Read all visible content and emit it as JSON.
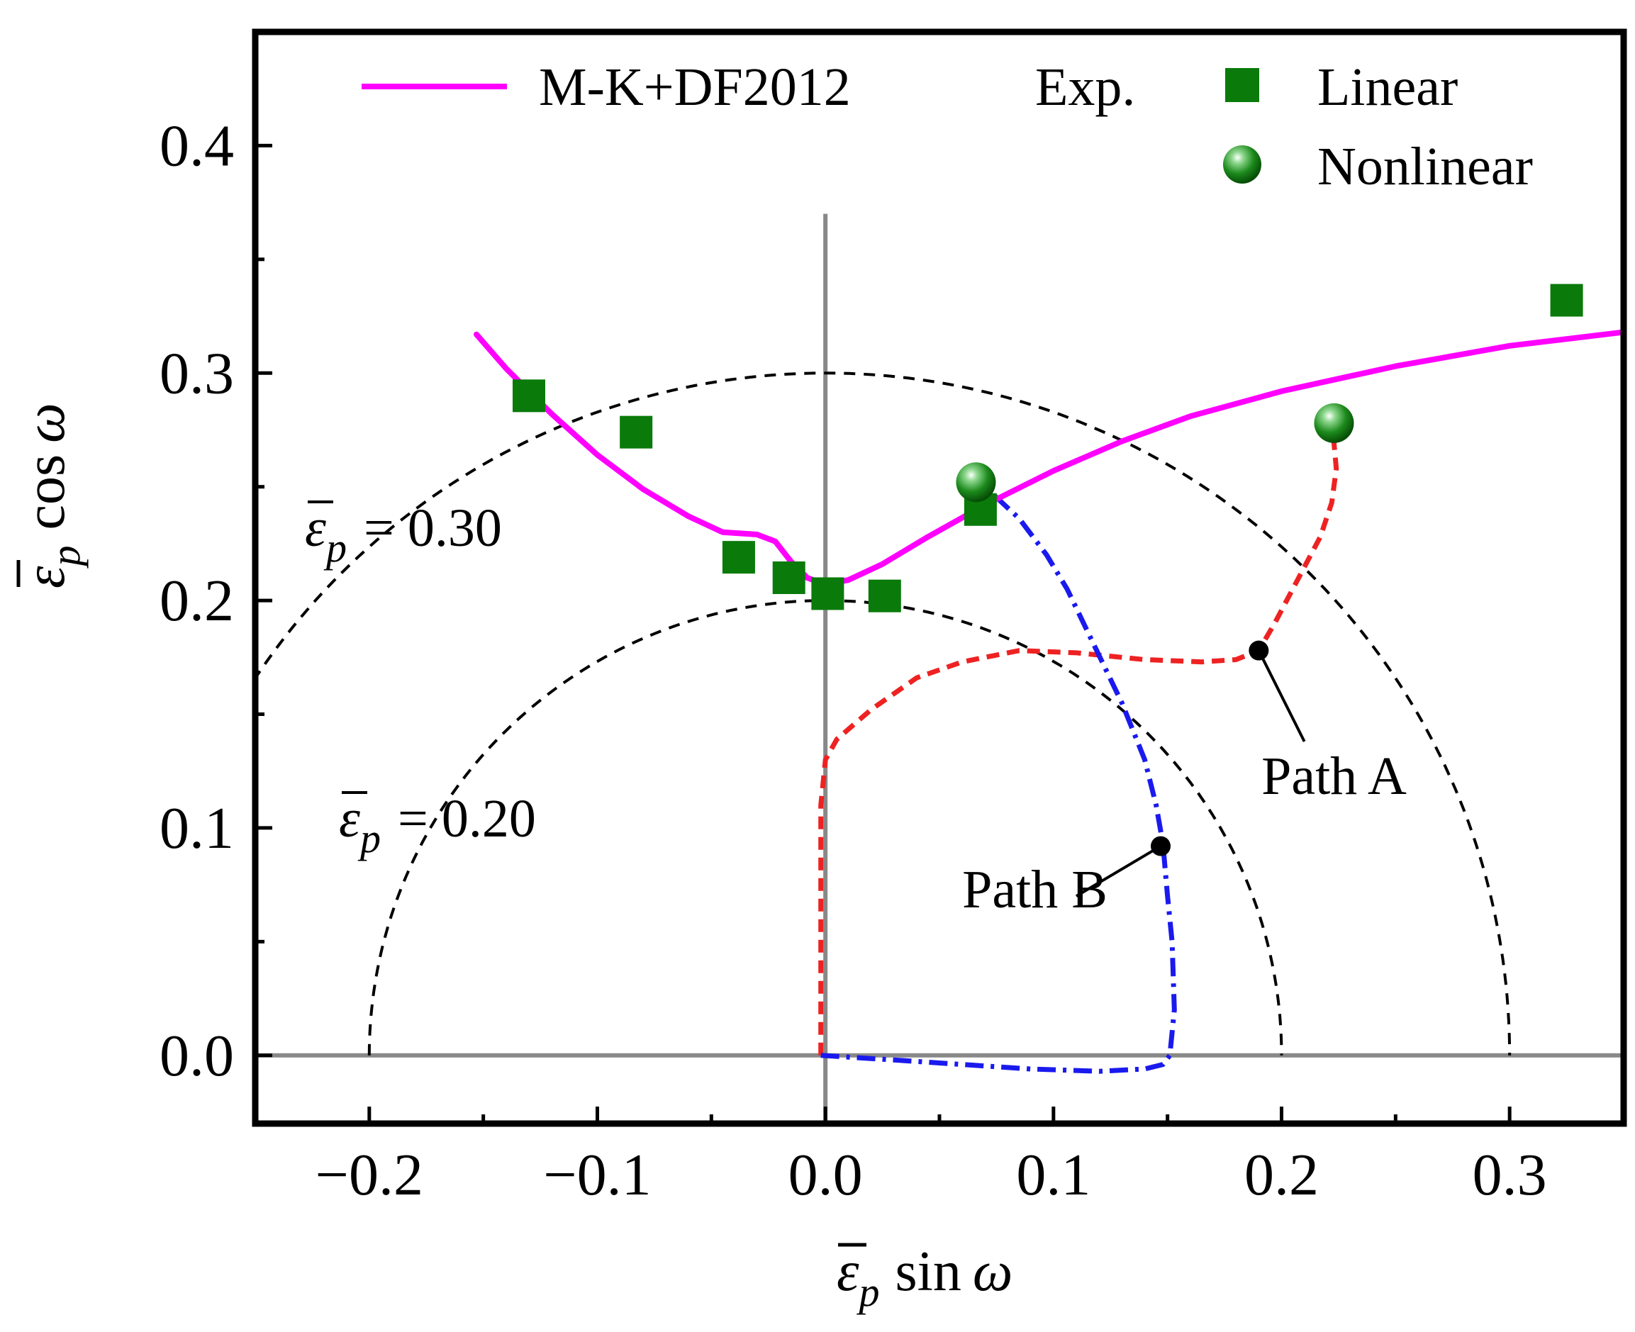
{
  "chart_data": {
    "type": "scatter",
    "title": "",
    "xlabel": {
      "symbol": "ε",
      "sub": "p",
      "func": "sin",
      "var": "ω"
    },
    "ylabel": {
      "symbol": "ε",
      "sub": "p",
      "func": "cos",
      "var": "ω"
    },
    "xlim": [
      -0.25,
      0.35
    ],
    "ylim": [
      -0.03,
      0.45
    ],
    "xticks": [
      -0.2,
      -0.1,
      0.0,
      0.1,
      0.2,
      0.3
    ],
    "xtick_labels": [
      "−0.2",
      "−0.1",
      "0.0",
      "0.1",
      "0.2",
      "0.3"
    ],
    "yticks": [
      0.0,
      0.1,
      0.2,
      0.3,
      0.4
    ],
    "ytick_labels": [
      "0.0",
      "0.1",
      "0.2",
      "0.3",
      "0.4"
    ],
    "legend": {
      "position": "top",
      "model_label": "M-K+DF2012",
      "exp_header": "Exp.",
      "linear_label": "Linear",
      "nonlinear_label": "Nonlinear"
    },
    "colors": {
      "model": "#ff00ff",
      "exp": "#0a7a0a",
      "path_a": "#ee2222",
      "path_b": "#1a1aee",
      "iso": "#000000",
      "axes_lines": "#888888"
    },
    "series": [
      {
        "name": "M-K+DF2012",
        "kind": "line",
        "points": [
          [
            -0.153,
            0.317
          ],
          [
            -0.14,
            0.302
          ],
          [
            -0.12,
            0.282
          ],
          [
            -0.1,
            0.264
          ],
          [
            -0.08,
            0.249
          ],
          [
            -0.06,
            0.237
          ],
          [
            -0.045,
            0.23
          ],
          [
            -0.03,
            0.229
          ],
          [
            -0.022,
            0.226
          ],
          [
            -0.015,
            0.217
          ],
          [
            -0.008,
            0.21
          ],
          [
            0.0,
            0.207
          ],
          [
            0.01,
            0.209
          ],
          [
            0.025,
            0.216
          ],
          [
            0.045,
            0.228
          ],
          [
            0.07,
            0.242
          ],
          [
            0.1,
            0.257
          ],
          [
            0.13,
            0.27
          ],
          [
            0.16,
            0.281
          ],
          [
            0.2,
            0.292
          ],
          [
            0.25,
            0.303
          ],
          [
            0.3,
            0.312
          ],
          [
            0.35,
            0.318
          ]
        ]
      },
      {
        "name": "Linear",
        "kind": "square",
        "points": [
          [
            -0.13,
            0.29
          ],
          [
            -0.083,
            0.274
          ],
          [
            -0.038,
            0.219
          ],
          [
            -0.016,
            0.21
          ],
          [
            0.001,
            0.203
          ],
          [
            0.026,
            0.202
          ],
          [
            0.068,
            0.24
          ],
          [
            0.325,
            0.332
          ]
        ]
      },
      {
        "name": "Nonlinear",
        "kind": "sphere",
        "points": [
          [
            0.066,
            0.252
          ],
          [
            0.223,
            0.278
          ]
        ]
      },
      {
        "name": "Path A",
        "kind": "dashed",
        "points": [
          [
            -0.002,
            0.0
          ],
          [
            -0.002,
            0.06
          ],
          [
            -0.002,
            0.11
          ],
          [
            0.0,
            0.13
          ],
          [
            0.005,
            0.139
          ],
          [
            0.02,
            0.152
          ],
          [
            0.04,
            0.166
          ],
          [
            0.06,
            0.173
          ],
          [
            0.085,
            0.178
          ],
          [
            0.11,
            0.177
          ],
          [
            0.14,
            0.174
          ],
          [
            0.165,
            0.173
          ],
          [
            0.18,
            0.174
          ],
          [
            0.19,
            0.178
          ],
          [
            0.197,
            0.19
          ],
          [
            0.207,
            0.209
          ],
          [
            0.217,
            0.228
          ],
          [
            0.222,
            0.243
          ],
          [
            0.224,
            0.258
          ],
          [
            0.223,
            0.269
          ],
          [
            0.222,
            0.278
          ]
        ]
      },
      {
        "name": "Path B",
        "kind": "dashdot",
        "points": [
          [
            -0.002,
            0.0
          ],
          [
            0.03,
            -0.002
          ],
          [
            0.06,
            -0.004
          ],
          [
            0.09,
            -0.006
          ],
          [
            0.12,
            -0.007
          ],
          [
            0.14,
            -0.006
          ],
          [
            0.148,
            -0.004
          ],
          [
            0.151,
            0.0
          ],
          [
            0.153,
            0.02
          ],
          [
            0.152,
            0.05
          ],
          [
            0.15,
            0.07
          ],
          [
            0.148,
            0.093
          ],
          [
            0.145,
            0.11
          ],
          [
            0.14,
            0.13
          ],
          [
            0.13,
            0.155
          ],
          [
            0.118,
            0.18
          ],
          [
            0.106,
            0.205
          ],
          [
            0.097,
            0.22
          ],
          [
            0.085,
            0.236
          ],
          [
            0.07,
            0.25
          ]
        ]
      }
    ],
    "iso_contours": [
      {
        "radius": 0.2,
        "label": {
          "symbol": "ε",
          "sub": "p",
          "rhs": "= 0.20"
        }
      },
      {
        "radius": 0.3,
        "label": {
          "symbol": "ε",
          "sub": "p",
          "rhs": "= 0.30"
        }
      }
    ],
    "annotations": [
      {
        "text": "Path A",
        "marker": [
          0.19,
          0.178
        ],
        "text_at": [
          0.223,
          0.115
        ]
      },
      {
        "text": "Path B",
        "marker": [
          0.147,
          0.092
        ],
        "text_at": [
          0.06,
          0.065
        ]
      }
    ]
  }
}
